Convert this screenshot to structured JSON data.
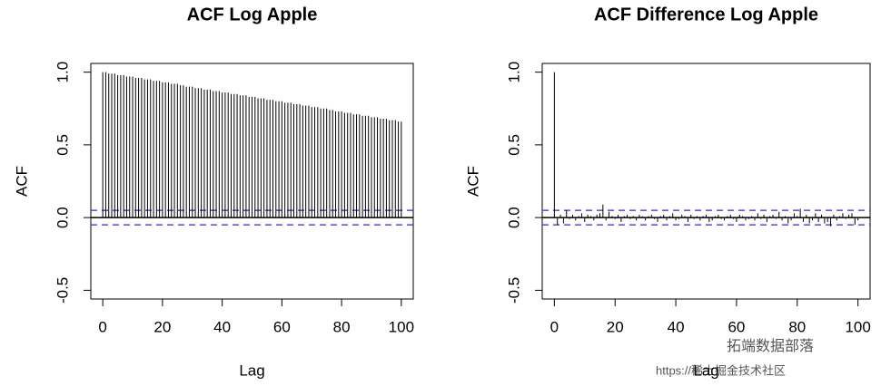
{
  "chart_data": [
    {
      "type": "acf",
      "title": "ACF Log Apple",
      "x_label": "Lag",
      "y_label": "ACF",
      "color": "#000000",
      "x": [
        0,
        1,
        2,
        3,
        4,
        5,
        6,
        7,
        8,
        9,
        10,
        11,
        12,
        13,
        14,
        15,
        16,
        17,
        18,
        19,
        20,
        21,
        22,
        23,
        24,
        25,
        26,
        27,
        28,
        29,
        30,
        31,
        32,
        33,
        34,
        35,
        36,
        37,
        38,
        39,
        40,
        41,
        42,
        43,
        44,
        45,
        46,
        47,
        48,
        49,
        50,
        51,
        52,
        53,
        54,
        55,
        56,
        57,
        58,
        59,
        60,
        61,
        62,
        63,
        64,
        65,
        66,
        67,
        68,
        69,
        70,
        71,
        72,
        73,
        74,
        75,
        76,
        77,
        78,
        79,
        80,
        81,
        82,
        83,
        84,
        85,
        86,
        87,
        88,
        89,
        90,
        91,
        92,
        93,
        94,
        95,
        96,
        97,
        98,
        99,
        100
      ],
      "values": [
        1.0,
        1.0,
        0.99,
        0.99,
        0.99,
        0.98,
        0.98,
        0.98,
        0.97,
        0.97,
        0.97,
        0.96,
        0.96,
        0.96,
        0.95,
        0.95,
        0.95,
        0.94,
        0.94,
        0.94,
        0.93,
        0.93,
        0.93,
        0.92,
        0.92,
        0.92,
        0.91,
        0.91,
        0.9,
        0.9,
        0.9,
        0.89,
        0.89,
        0.89,
        0.88,
        0.88,
        0.88,
        0.87,
        0.87,
        0.87,
        0.86,
        0.86,
        0.86,
        0.85,
        0.85,
        0.85,
        0.84,
        0.84,
        0.84,
        0.83,
        0.83,
        0.83,
        0.82,
        0.82,
        0.82,
        0.81,
        0.81,
        0.81,
        0.8,
        0.8,
        0.8,
        0.79,
        0.79,
        0.79,
        0.78,
        0.78,
        0.78,
        0.77,
        0.77,
        0.77,
        0.76,
        0.76,
        0.76,
        0.75,
        0.75,
        0.75,
        0.74,
        0.74,
        0.73,
        0.73,
        0.73,
        0.72,
        0.72,
        0.72,
        0.71,
        0.71,
        0.71,
        0.7,
        0.7,
        0.7,
        0.69,
        0.69,
        0.69,
        0.68,
        0.68,
        0.68,
        0.67,
        0.67,
        0.67,
        0.66,
        0.66
      ],
      "ci_lines": [
        0.05,
        -0.05
      ],
      "ci_color": "#2b2bd9",
      "xlim": [
        -4,
        104
      ],
      "xticks": [
        0,
        20,
        40,
        60,
        80,
        100
      ],
      "ylim": [
        -0.56,
        1.06
      ],
      "yticks": [
        -0.5,
        {
          "value": 0,
          "label": "0.0"
        },
        0.5,
        {
          "value": 1,
          "label": "1.0"
        }
      ]
    },
    {
      "type": "acf",
      "title": "ACF Difference Log Apple",
      "x_label": "Lag",
      "y_label": "ACF",
      "color": "#000000",
      "x": [
        0,
        1,
        2,
        3,
        4,
        5,
        6,
        7,
        8,
        9,
        10,
        11,
        12,
        13,
        14,
        15,
        16,
        17,
        18,
        19,
        20,
        21,
        22,
        23,
        24,
        25,
        26,
        27,
        28,
        29,
        30,
        31,
        32,
        33,
        34,
        35,
        36,
        37,
        38,
        39,
        40,
        41,
        42,
        43,
        44,
        45,
        46,
        47,
        48,
        49,
        50,
        51,
        52,
        53,
        54,
        55,
        56,
        57,
        58,
        59,
        60,
        61,
        62,
        63,
        64,
        65,
        66,
        67,
        68,
        69,
        70,
        71,
        72,
        73,
        74,
        75,
        76,
        77,
        78,
        79,
        80,
        81,
        82,
        83,
        84,
        85,
        86,
        87,
        88,
        89,
        90,
        91,
        92,
        93,
        94,
        95,
        96,
        97,
        98,
        99,
        100
      ],
      "values": [
        1,
        -0.05,
        0.02,
        -0.04,
        0.05,
        -0.01,
        0.02,
        -0.02,
        0.01,
        0.03,
        -0.03,
        0.02,
        0.01,
        -0.02,
        0.02,
        0.03,
        0.09,
        -0.02,
        0.04,
        0.01,
        -0.01,
        0.02,
        -0.03,
        0.01,
        0.02,
        -0.01,
        0.01,
        -0.02,
        0.02,
        0.01,
        -0.02,
        0.01,
        0.02,
        -0.01,
        -0.03,
        0.01,
        0.02,
        -0.02,
        0.01,
        0.03,
        -0.02,
        -0.01,
        0.02,
        0.01,
        -0.03,
        0.02,
        -0.01,
        0.01,
        -0.02,
        0.01,
        0.02,
        -0.03,
        -0.02,
        0.01,
        0.02,
        -0.01,
        -0.02,
        0.01,
        0.02,
        -0.01,
        -0.03,
        0.02,
        0.01,
        -0.02,
        -0.01,
        0.01,
        -0.02,
        0.03,
        -0.01,
        0.02,
        -0.03,
        0.01,
        0.02,
        -0.01,
        0.04,
        -0.02,
        0.01,
        -0.04,
        -0.02,
        0.03,
        0.01,
        0.06,
        -0.03,
        0.02,
        -0.04,
        -0.02,
        0.03,
        -0.03,
        0.02,
        -0.04,
        -0.03,
        -0.06,
        0.02,
        -0.02,
        0.01,
        0.03,
        -0.01,
        0.02,
        0.03,
        -0.05,
        -0.02
      ],
      "ci_lines": [
        0.05,
        -0.05
      ],
      "ci_color": "#2b2bd9",
      "xlim": [
        -4,
        104
      ],
      "xticks": [
        0,
        20,
        40,
        60,
        80,
        100
      ],
      "ylim": [
        -0.56,
        1.06
      ],
      "yticks": [
        -0.5,
        {
          "value": 0,
          "label": "0.0"
        },
        0.5,
        {
          "value": 1,
          "label": "1.0"
        }
      ]
    }
  ],
  "watermark": [
    "拓端数据部落",
    "https://稀土掘金技术社区"
  ]
}
